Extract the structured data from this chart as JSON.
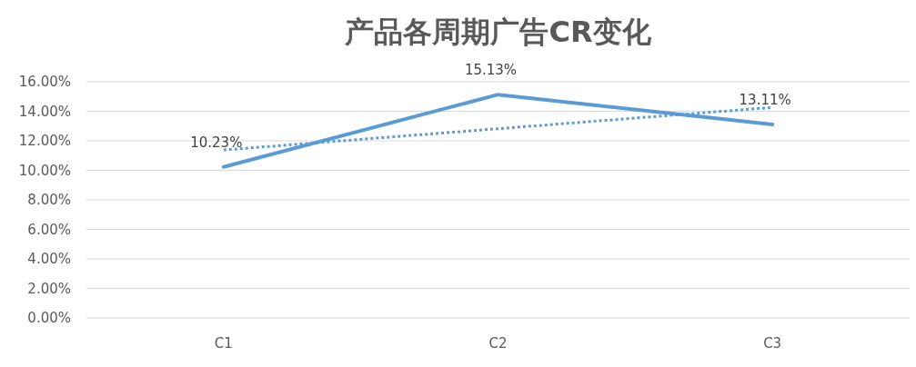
{
  "chart_data": {
    "type": "line",
    "title": "产品各周期广告CR变化",
    "categories": [
      "C1",
      "C2",
      "C3"
    ],
    "series": [
      {
        "color": "#5b9bd5",
        "values": [
          10.23,
          15.13,
          13.11
        ],
        "value_labels": [
          "10.23%",
          "15.13%",
          "13.11%"
        ],
        "line_style": "solid"
      },
      {
        "type": "line",
        "color": "#5b9bd5",
        "values": [
          11.38,
          12.82,
          14.26
        ],
        "line_style": "dotted"
      }
    ],
    "ylim": [
      0,
      16
    ],
    "yticks": [
      {
        "value": 0,
        "label": "0.00%"
      },
      {
        "value": 2,
        "label": "2.00%"
      },
      {
        "value": 4,
        "label": "4.00%"
      },
      {
        "value": 6,
        "label": "6.00%"
      },
      {
        "value": 8,
        "label": "8.00%"
      },
      {
        "value": 10,
        "label": "10.00%"
      },
      {
        "value": 12,
        "label": "12.00%"
      },
      {
        "value": 14,
        "label": "14.00%"
      },
      {
        "value": 16,
        "label": "16.00%"
      }
    ],
    "grid": "y",
    "marker": "none"
  }
}
